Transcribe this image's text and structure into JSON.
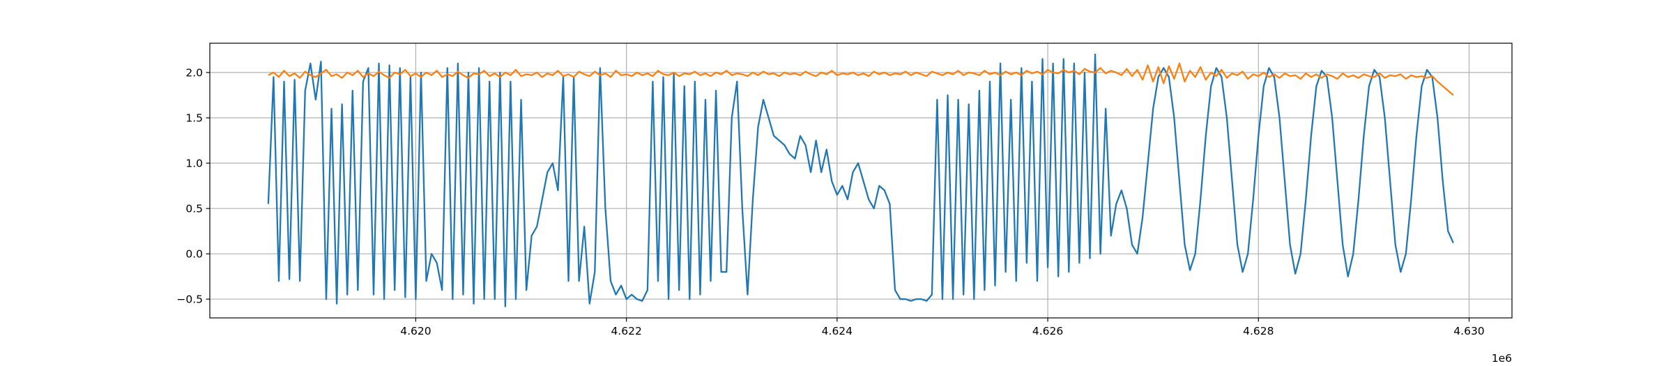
{
  "chart_data": {
    "type": "line",
    "grid": true,
    "x_offset_label": "1e6",
    "xlim": [
      4618045,
      4630407
    ],
    "ylim": [
      -0.707,
      2.323
    ],
    "xticks": [
      {
        "value": 4620000,
        "label": "4.620"
      },
      {
        "value": 4622000,
        "label": "4.622"
      },
      {
        "value": 4624000,
        "label": "4.624"
      },
      {
        "value": 4626000,
        "label": "4.626"
      },
      {
        "value": 4628000,
        "label": "4.628"
      },
      {
        "value": 4630000,
        "label": "4.630"
      }
    ],
    "yticks": [
      {
        "value": -0.5,
        "label": "−0.5"
      },
      {
        "value": 0,
        "label": "0.0"
      },
      0.5,
      {
        "value": 1,
        "label": "1.0"
      },
      1.5,
      {
        "value": 2,
        "label": "2.0"
      }
    ],
    "x": [
      4618600,
      4618650,
      4618700,
      4618750,
      4618800,
      4618850,
      4618900,
      4618950,
      4619000,
      4619050,
      4619100,
      4619150,
      4619200,
      4619250,
      4619300,
      4619350,
      4619400,
      4619450,
      4619500,
      4619550,
      4619600,
      4619650,
      4619700,
      4619750,
      4619800,
      4619850,
      4619900,
      4619950,
      4620000,
      4620050,
      4620100,
      4620150,
      4620200,
      4620250,
      4620300,
      4620350,
      4620400,
      4620450,
      4620500,
      4620550,
      4620600,
      4620650,
      4620700,
      4620750,
      4620800,
      4620850,
      4620900,
      4620950,
      4621000,
      4621050,
      4621100,
      4621150,
      4621200,
      4621250,
      4621300,
      4621350,
      4621400,
      4621450,
      4621500,
      4621550,
      4621600,
      4621650,
      4621700,
      4621750,
      4621800,
      4621850,
      4621900,
      4621950,
      4622000,
      4622050,
      4622100,
      4622150,
      4622200,
      4622250,
      4622300,
      4622350,
      4622400,
      4622450,
      4622500,
      4622550,
      4622600,
      4622650,
      4622700,
      4622750,
      4622800,
      4622850,
      4622900,
      4622950,
      4623000,
      4623050,
      4623100,
      4623150,
      4623200,
      4623250,
      4623300,
      4623350,
      4623400,
      4623450,
      4623500,
      4623550,
      4623600,
      4623650,
      4623700,
      4623750,
      4623800,
      4623850,
      4623900,
      4623950,
      4624000,
      4624050,
      4624100,
      4624150,
      4624200,
      4624250,
      4624300,
      4624350,
      4624400,
      4624450,
      4624500,
      4624550,
      4624600,
      4624650,
      4624700,
      4624750,
      4624800,
      4624850,
      4624900,
      4624950,
      4625000,
      4625050,
      4625100,
      4625150,
      4625200,
      4625250,
      4625300,
      4625350,
      4625400,
      4625450,
      4625500,
      4625550,
      4625600,
      4625650,
      4625700,
      4625750,
      4625800,
      4625850,
      4625900,
      4625950,
      4626000,
      4626050,
      4626100,
      4626150,
      4626200,
      4626250,
      4626300,
      4626350,
      4626400,
      4626450,
      4626500,
      4626550,
      4626600,
      4626650,
      4626700,
      4626750,
      4626800,
      4626850,
      4626900,
      4626950,
      4627000,
      4627050,
      4627100,
      4627150,
      4627200,
      4627250,
      4627300,
      4627350,
      4627400,
      4627450,
      4627500,
      4627550,
      4627600,
      4627650,
      4627700,
      4627750,
      4627800,
      4627850,
      4627900,
      4627950,
      4628000,
      4628050,
      4628100,
      4628150,
      4628200,
      4628250,
      4628300,
      4628350,
      4628400,
      4628450,
      4628500,
      4628550,
      4628600,
      4628650,
      4628700,
      4628750,
      4628800,
      4628850,
      4628900,
      4628950,
      4629000,
      4629050,
      4629100,
      4629150,
      4629200,
      4629250,
      4629300,
      4629350,
      4629400,
      4629450,
      4629500,
      4629550,
      4629600,
      4629650,
      4629700,
      4629750,
      4629800,
      4629850
    ],
    "series": [
      {
        "color": "#1f77b4",
        "values": [
          0.55,
          1.95,
          -0.3,
          1.9,
          -0.28,
          1.92,
          -0.3,
          1.8,
          2.1,
          1.7,
          2.12,
          -0.5,
          1.6,
          -0.55,
          1.65,
          -0.45,
          1.8,
          -0.4,
          1.9,
          2.05,
          -0.45,
          2.1,
          -0.5,
          2.08,
          -0.4,
          2.05,
          -0.48,
          1.95,
          -0.5,
          2.0,
          -0.3,
          0.0,
          -0.1,
          -0.4,
          2.05,
          -0.5,
          2.1,
          -0.45,
          2.0,
          -0.55,
          2.05,
          -0.5,
          1.9,
          -0.5,
          2.0,
          -0.58,
          1.9,
          -0.5,
          1.7,
          -0.4,
          0.2,
          0.3,
          0.6,
          0.9,
          1.0,
          0.7,
          1.95,
          -0.3,
          1.95,
          -0.3,
          0.3,
          -0.55,
          -0.2,
          2.05,
          0.5,
          -0.3,
          -0.45,
          -0.35,
          -0.5,
          -0.45,
          -0.5,
          -0.52,
          -0.4,
          1.9,
          -0.3,
          1.95,
          -0.5,
          2.0,
          -0.4,
          1.85,
          -0.5,
          1.9,
          -0.45,
          1.7,
          -0.3,
          1.8,
          -0.2,
          -0.2,
          1.5,
          1.9,
          0.5,
          -0.45,
          0.6,
          1.4,
          1.7,
          1.5,
          1.3,
          1.25,
          1.2,
          1.1,
          1.05,
          1.3,
          1.2,
          0.9,
          1.25,
          0.9,
          1.15,
          0.8,
          0.65,
          0.75,
          0.6,
          0.9,
          1.0,
          0.8,
          0.6,
          0.5,
          0.75,
          0.7,
          0.55,
          -0.4,
          -0.5,
          -0.5,
          -0.52,
          -0.5,
          -0.5,
          -0.52,
          -0.45,
          1.7,
          -0.5,
          1.75,
          -0.5,
          1.7,
          -0.45,
          1.65,
          -0.5,
          1.8,
          -0.4,
          1.9,
          -0.35,
          2.1,
          -0.2,
          1.7,
          -0.3,
          2.05,
          -0.1,
          1.9,
          -0.3,
          2.15,
          -0.15,
          2.1,
          -0.25,
          2.15,
          -0.2,
          2.1,
          -0.1,
          2.0,
          -0.05,
          2.2,
          0.0,
          1.6,
          0.2,
          0.55,
          0.7,
          0.5,
          0.1,
          0.0,
          0.4,
          1.0,
          1.6,
          1.95,
          2.05,
          1.95,
          1.5,
          0.8,
          0.1,
          -0.18,
          0.0,
          0.6,
          1.3,
          1.85,
          2.05,
          1.95,
          1.5,
          0.8,
          0.1,
          -0.2,
          0.0,
          0.6,
          1.3,
          1.85,
          2.05,
          1.95,
          1.5,
          0.8,
          0.1,
          -0.22,
          0.0,
          0.6,
          1.3,
          1.85,
          2.02,
          1.95,
          1.5,
          0.8,
          0.1,
          -0.25,
          0.0,
          0.6,
          1.3,
          1.85,
          2.03,
          1.95,
          1.5,
          0.8,
          0.1,
          -0.2,
          0.0,
          0.6,
          1.3,
          1.85,
          2.03,
          1.95,
          1.5,
          0.8,
          0.25,
          0.12
        ]
      },
      {
        "color": "#ff7f0e",
        "values": [
          1.97,
          2.0,
          1.95,
          2.02,
          1.96,
          1.99,
          1.94,
          2.01,
          1.97,
          1.95,
          1.99,
          2.03,
          1.96,
          1.98,
          1.94,
          2.0,
          1.97,
          2.02,
          1.95,
          1.99,
          1.96,
          2.01,
          1.97,
          1.94,
          2.0,
          1.98,
          2.03,
          1.96,
          1.99,
          1.95,
          2.0,
          1.97,
          2.02,
          1.95,
          1.98,
          1.96,
          2.01,
          1.97,
          1.94,
          1.99,
          1.98,
          2.02,
          1.96,
          1.99,
          1.95,
          2.0,
          1.97,
          2.03,
          1.96,
          1.98,
          1.97,
          2.0,
          1.95,
          1.99,
          1.97,
          2.02,
          1.96,
          1.98,
          1.95,
          2.01,
          1.98,
          1.96,
          2.01,
          1.97,
          1.99,
          1.95,
          2.02,
          1.97,
          1.98,
          1.96,
          2.0,
          1.97,
          1.99,
          1.96,
          2.02,
          1.98,
          1.97,
          2.0,
          1.96,
          1.99,
          1.98,
          2.01,
          1.97,
          1.99,
          1.96,
          2.0,
          1.98,
          2.02,
          1.97,
          1.99,
          1.98,
          1.96,
          2.0,
          1.97,
          2.01,
          1.98,
          1.99,
          1.96,
          2.0,
          1.98,
          1.99,
          1.97,
          2.01,
          1.98,
          1.96,
          2.0,
          1.98,
          2.02,
          1.97,
          1.99,
          1.98,
          2.0,
          1.97,
          1.99,
          1.96,
          2.01,
          1.98,
          2.0,
          1.97,
          1.99,
          1.98,
          2.01,
          1.97,
          2.0,
          1.98,
          1.96,
          2.01,
          1.99,
          1.97,
          2.0,
          1.98,
          2.02,
          1.97,
          2.0,
          1.99,
          1.97,
          2.02,
          1.98,
          2.0,
          1.97,
          2.01,
          1.98,
          2.0,
          1.97,
          2.02,
          1.99,
          2.01,
          1.98,
          2.03,
          2.0,
          1.99,
          2.03,
          2.0,
          2.02,
          1.98,
          2.04,
          2.01,
          2.0,
          2.05,
          1.99,
          2.02,
          2.0,
          1.97,
          2.04,
          1.96,
          2.03,
          1.92,
          2.08,
          1.9,
          2.06,
          1.88,
          2.07,
          1.93,
          2.1,
          1.9,
          2.02,
          1.95,
          2.06,
          1.92,
          2.0,
          1.96,
          2.03,
          1.94,
          1.99,
          1.97,
          2.01,
          1.93,
          1.98,
          1.96,
          2.0,
          1.95,
          1.98,
          1.94,
          1.99,
          1.96,
          1.97,
          1.93,
          1.99,
          1.95,
          1.98,
          1.94,
          1.98,
          1.96,
          1.93,
          1.99,
          1.95,
          1.97,
          1.94,
          1.98,
          1.96,
          1.95,
          1.99,
          1.94,
          1.97,
          1.96,
          1.98,
          1.93,
          1.97,
          1.95,
          1.96,
          1.94,
          1.96,
          1.9,
          1.85,
          1.8,
          1.75
        ]
      }
    ]
  }
}
